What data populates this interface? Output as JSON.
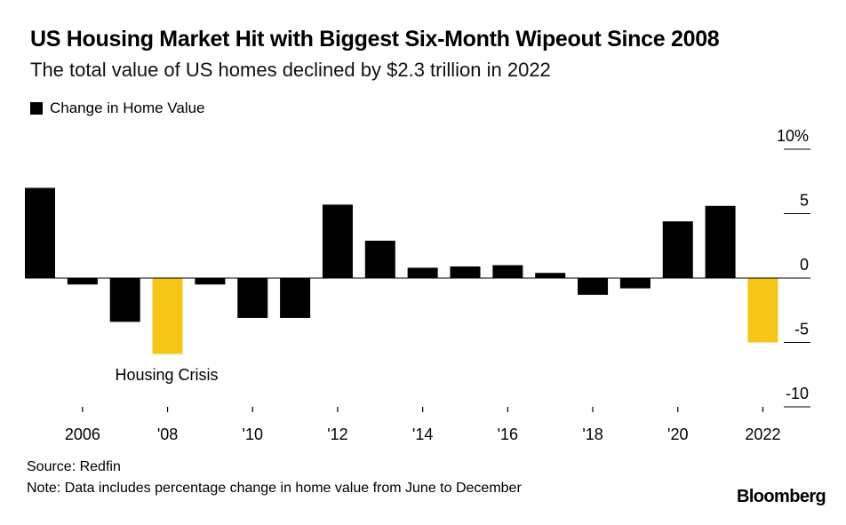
{
  "header": {
    "title": "US Housing Market Hit with Biggest Six-Month Wipeout Since 2008",
    "subtitle": "The total value of US homes declined by $2.3 trillion in 2022"
  },
  "legend": {
    "label": "Change in Home Value",
    "color": "#000000"
  },
  "footer": {
    "source": "Source: Redfin",
    "note": "Note: Data includes percentage change in home value from June to December",
    "brand": "Bloomberg"
  },
  "colors": {
    "bar": "#000000",
    "highlight": "#F5C518",
    "axis": "#000000"
  },
  "chart_data": {
    "type": "bar",
    "title": "US Housing Market Hit with Biggest Six-Month Wipeout Since 2008",
    "xlabel": "",
    "ylabel": "",
    "ylim": [
      -10,
      10
    ],
    "y_ticks": [
      {
        "value": 10,
        "label": "10%"
      },
      {
        "value": 5,
        "label": "5"
      },
      {
        "value": 0,
        "label": "0"
      },
      {
        "value": -5,
        "label": "-5"
      },
      {
        "value": -10,
        "label": "-10"
      }
    ],
    "x_ticks": [
      {
        "year": 2006,
        "label": "2006"
      },
      {
        "year": 2008,
        "label": "'08"
      },
      {
        "year": 2010,
        "label": "'10"
      },
      {
        "year": 2012,
        "label": "'12"
      },
      {
        "year": 2014,
        "label": "'14"
      },
      {
        "year": 2016,
        "label": "'16"
      },
      {
        "year": 2018,
        "label": "'18"
      },
      {
        "year": 2020,
        "label": "'20"
      },
      {
        "year": 2022,
        "label": "2022"
      }
    ],
    "categories": [
      2005,
      2006,
      2007,
      2008,
      2009,
      2010,
      2011,
      2012,
      2013,
      2014,
      2015,
      2016,
      2017,
      2018,
      2019,
      2020,
      2021,
      2022
    ],
    "values": [
      7.0,
      -0.5,
      -3.4,
      -5.9,
      -0.5,
      -3.1,
      -3.1,
      5.7,
      2.9,
      0.8,
      0.9,
      1.0,
      0.4,
      -1.3,
      -0.8,
      4.4,
      5.6,
      -5.0
    ],
    "highlighted": [
      2008,
      2022
    ],
    "annotations": [
      {
        "text": "Housing Crisis",
        "year": 2008
      }
    ],
    "legend": [
      "Change in Home Value"
    ]
  }
}
